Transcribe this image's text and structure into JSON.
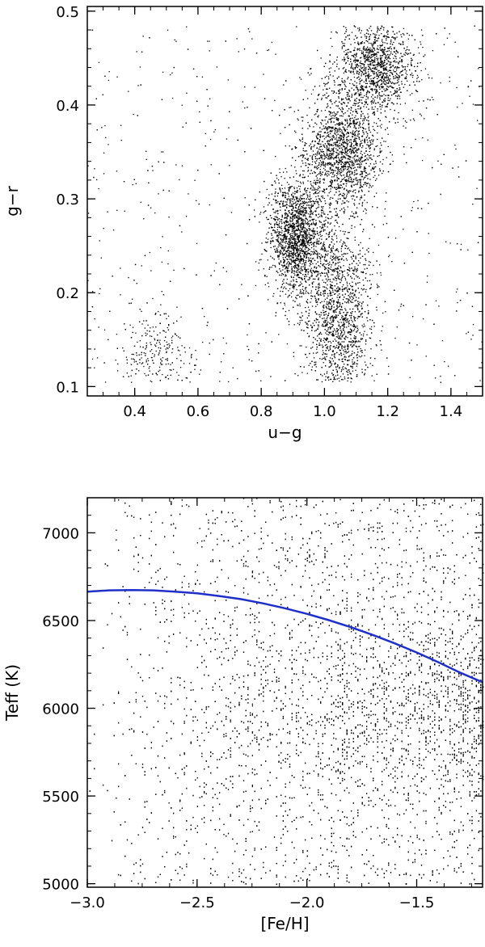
{
  "chart_data": [
    {
      "type": "scatter",
      "title": "",
      "xlabel": "u−g",
      "ylabel": "g−r",
      "xlim": [
        0.25,
        1.5
      ],
      "ylim": [
        0.09,
        0.505
      ],
      "xticks": [
        0.4,
        0.6,
        0.8,
        1.0,
        1.2,
        1.4
      ],
      "xtick_labels": [
        "0.4",
        "0.6",
        "0.8",
        "1.0",
        "1.2",
        "1.4"
      ],
      "yticks": [
        0.1,
        0.2,
        0.3,
        0.4,
        0.5
      ],
      "ytick_labels": [
        "0.1",
        "0.2",
        "0.3",
        "0.4",
        "0.5"
      ],
      "grid": false,
      "point_color": "#000000",
      "density_clusters": [
        {
          "x_center": 0.91,
          "y_center": 0.26,
          "sx": 0.045,
          "sy": 0.03,
          "weight": 0.22
        },
        {
          "x_center": 1.05,
          "y_center": 0.35,
          "sx": 0.06,
          "sy": 0.03,
          "weight": 0.22
        },
        {
          "x_center": 1.16,
          "y_center": 0.44,
          "sx": 0.06,
          "sy": 0.025,
          "weight": 0.18
        },
        {
          "x_center": 1.05,
          "y_center": 0.16,
          "sx": 0.05,
          "sy": 0.035,
          "weight": 0.12
        },
        {
          "x_center": 1.02,
          "y_center": 0.22,
          "sx": 0.07,
          "sy": 0.04,
          "weight": 0.1
        },
        {
          "x_center": 0.47,
          "y_center": 0.13,
          "sx": 0.06,
          "sy": 0.025,
          "weight": 0.04
        }
      ],
      "y_cut_min": 0.105,
      "y_cut_max": 0.485
    },
    {
      "type": "scatter",
      "title": "",
      "xlabel": "[Fe/H]",
      "ylabel": "Teff (K)",
      "xlim": [
        -3.0,
        -1.2
      ],
      "ylim": [
        4980,
        7200
      ],
      "xticks": [
        -3.0,
        -2.5,
        -2.0,
        -1.5
      ],
      "xtick_labels": [
        "−3.0",
        "−2.5",
        "−2.0",
        "−1.5"
      ],
      "yticks": [
        5000,
        5500,
        6000,
        6500,
        7000
      ],
      "ytick_labels": [
        "5000",
        "5500",
        "6000",
        "6500",
        "7000"
      ],
      "grid": false,
      "point_color": "#000000",
      "fit_curve": {
        "color": "#1f2fc8",
        "x": [
          -3.0,
          -2.9,
          -2.8,
          -2.7,
          -2.6,
          -2.5,
          -2.4,
          -2.3,
          -2.2,
          -2.1,
          -2.0,
          -1.9,
          -1.8,
          -1.7,
          -1.6,
          -1.5,
          -1.4,
          -1.3,
          -1.2
        ],
        "y": [
          6665,
          6672,
          6674,
          6672,
          6665,
          6655,
          6640,
          6622,
          6598,
          6570,
          6538,
          6502,
          6462,
          6418,
          6370,
          6318,
          6262,
          6202,
          6148
        ]
      }
    }
  ]
}
